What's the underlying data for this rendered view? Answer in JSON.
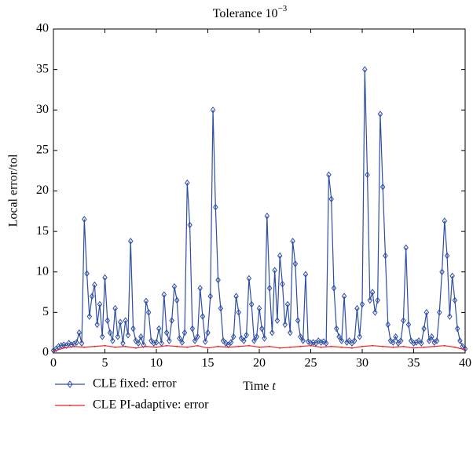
{
  "chart_data": {
    "type": "line",
    "title": {
      "text": "Tolerance 10",
      "superscript": "−3"
    },
    "xlabel": {
      "text": "Time ",
      "italic": "t"
    },
    "ylabel": "Local error/tol",
    "xlim": [
      0,
      40
    ],
    "xticks": [
      0,
      5,
      10,
      15,
      20,
      25,
      30,
      35,
      40
    ],
    "ylim": [
      0,
      40
    ],
    "yticks": [
      0,
      5,
      10,
      15,
      20,
      25,
      30,
      35,
      40
    ],
    "grid": false,
    "legend": "below",
    "series": [
      {
        "name": "CLE fixed: error",
        "color": "#2e4ea2",
        "marker": "diamond",
        "x": [
          0,
          0.25,
          0.5,
          0.75,
          1,
          1.25,
          1.5,
          1.75,
          2,
          2.25,
          2.5,
          2.75,
          3,
          3.25,
          3.5,
          3.75,
          4,
          4.25,
          4.5,
          4.75,
          5,
          5.25,
          5.5,
          5.75,
          6,
          6.25,
          6.5,
          6.75,
          7,
          7.25,
          7.5,
          7.75,
          8,
          8.25,
          8.5,
          8.75,
          9,
          9.25,
          9.5,
          9.75,
          10,
          10.25,
          10.5,
          10.75,
          11,
          11.25,
          11.5,
          11.75,
          12,
          12.25,
          12.5,
          12.75,
          13,
          13.25,
          13.5,
          13.75,
          14,
          14.25,
          14.5,
          14.75,
          15,
          15.25,
          15.5,
          15.75,
          16,
          16.25,
          16.5,
          16.75,
          17,
          17.25,
          17.5,
          17.75,
          18,
          18.25,
          18.5,
          18.75,
          19,
          19.25,
          19.5,
          19.75,
          20,
          20.25,
          20.5,
          20.75,
          21,
          21.25,
          21.5,
          21.75,
          22,
          22.25,
          22.5,
          22.75,
          23,
          23.25,
          23.5,
          23.75,
          24,
          24.25,
          24.5,
          24.75,
          25,
          25.25,
          25.5,
          25.75,
          26,
          26.25,
          26.5,
          26.75,
          27,
          27.25,
          27.5,
          27.75,
          28,
          28.25,
          28.5,
          28.75,
          29,
          29.25,
          29.5,
          29.75,
          30,
          30.25,
          30.5,
          30.75,
          31,
          31.25,
          31.5,
          31.75,
          32,
          32.25,
          32.5,
          32.75,
          33,
          33.25,
          33.5,
          33.75,
          34,
          34.25,
          34.5,
          34.75,
          35,
          35.25,
          35.5,
          35.75,
          36,
          36.25,
          36.5,
          36.75,
          37,
          37.25,
          37.5,
          37.75,
          38,
          38.25,
          38.5,
          38.75,
          39,
          39.25,
          39.5,
          39.75,
          40
        ],
        "values": [
          0.3,
          0.5,
          0.8,
          0.9,
          1.0,
          0.9,
          1.2,
          1.0,
          1.1,
          1.3,
          2.5,
          1.2,
          16.5,
          9.8,
          4.5,
          7.0,
          8.4,
          3.5,
          6.0,
          2.0,
          9.3,
          4.0,
          2.5,
          1.5,
          5.5,
          2.0,
          3.8,
          1.2,
          4.0,
          2.2,
          13.8,
          3.0,
          1.5,
          1.2,
          2.0,
          1.0,
          6.4,
          5.0,
          1.5,
          1.2,
          1.3,
          3.0,
          1.2,
          7.2,
          2.5,
          1.5,
          4.0,
          8.2,
          6.5,
          1.8,
          1.3,
          2.5,
          21.0,
          15.8,
          3.0,
          1.5,
          2.0,
          8.0,
          4.5,
          1.4,
          2.5,
          7.0,
          30.0,
          18.0,
          9.0,
          5.5,
          1.5,
          1.2,
          1.0,
          1.3,
          2.0,
          7.0,
          5.0,
          1.8,
          1.5,
          2.2,
          9.2,
          6.0,
          1.5,
          2.0,
          5.5,
          3.0,
          1.8,
          16.9,
          8.0,
          2.5,
          10.2,
          4.0,
          12.0,
          8.5,
          3.5,
          6.0,
          2.5,
          13.8,
          11.0,
          4.0,
          2.0,
          1.5,
          9.7,
          1.4,
          1.2,
          1.3,
          1.2,
          1.5,
          1.3,
          1.4,
          1.2,
          22.0,
          19.0,
          8.0,
          3.0,
          2.0,
          1.5,
          7.0,
          1.3,
          1.5,
          1.2,
          1.5,
          5.5,
          2.0,
          6.0,
          35.0,
          22.0,
          6.5,
          7.5,
          5.0,
          6.5,
          29.5,
          20.5,
          12.0,
          3.5,
          1.5,
          1.3,
          2.0,
          1.2,
          1.5,
          4.0,
          13.0,
          3.5,
          1.5,
          1.2,
          1.3,
          1.5,
          1.2,
          3.0,
          5.0,
          1.5,
          2.0,
          1.3,
          1.5,
          5.0,
          10.0,
          16.3,
          12.0,
          4.5,
          9.5,
          6.5,
          3.0,
          1.5,
          0.8,
          0.5
        ]
      },
      {
        "name": "CLE PI-adaptive: error",
        "color": "#e8262a",
        "marker": "point",
        "x": [
          0,
          1,
          2,
          3,
          4,
          5,
          6,
          7,
          8,
          9,
          10,
          11,
          12,
          13,
          14,
          15,
          16,
          17,
          18,
          19,
          20,
          21,
          22,
          23,
          24,
          25,
          26,
          27,
          28,
          29,
          30,
          31,
          32,
          33,
          34,
          35,
          36,
          37,
          38,
          39,
          40
        ],
        "values": [
          0.2,
          0.6,
          0.8,
          0.7,
          0.8,
          0.9,
          0.7,
          0.8,
          0.6,
          0.8,
          0.7,
          0.9,
          0.8,
          0.7,
          0.9,
          0.6,
          0.8,
          0.7,
          0.8,
          0.9,
          0.7,
          0.8,
          0.6,
          0.7,
          0.8,
          0.9,
          0.7,
          0.8,
          0.7,
          0.6,
          0.8,
          0.9,
          0.8,
          0.7,
          0.8,
          0.6,
          0.7,
          0.8,
          0.9,
          0.7,
          0.4
        ]
      }
    ]
  }
}
